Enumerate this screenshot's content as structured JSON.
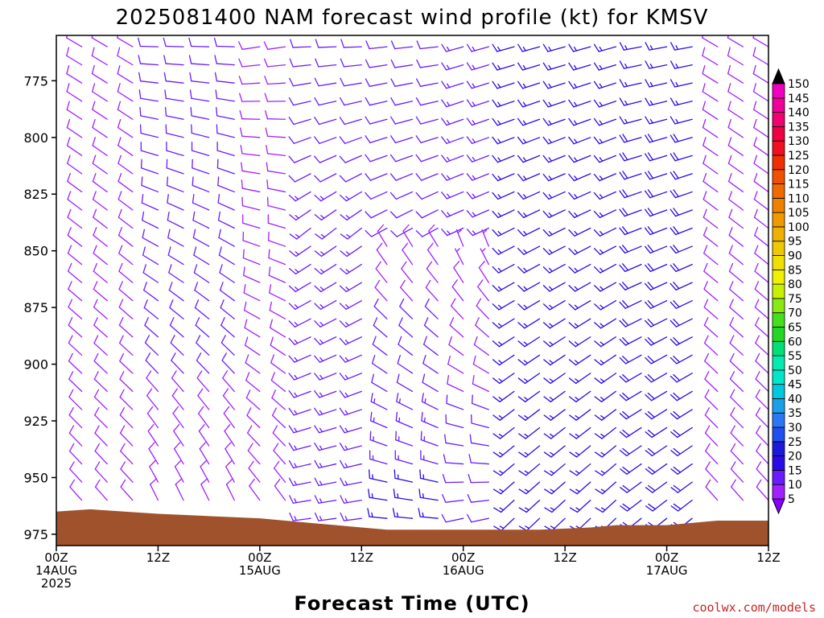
{
  "chart_data": {
    "type": "wind-barb-profile",
    "title": "2025081400 NAM forecast wind profile (kt) for KMSV",
    "xlabel": "Forecast Time (UTC)",
    "ylabel": "",
    "units": "kt",
    "ylim": [
      980,
      755
    ],
    "yticks": [
      775,
      800,
      825,
      850,
      875,
      900,
      925,
      950,
      975
    ],
    "x_range_hours": [
      0,
      84
    ],
    "x_step_hours": 3,
    "xticks": [
      {
        "hour": 0,
        "line1": "00Z",
        "line2": "14AUG",
        "line3": "2025"
      },
      {
        "hour": 12,
        "line1": "12Z",
        "line2": "",
        "line3": ""
      },
      {
        "hour": 24,
        "line1": "00Z",
        "line2": "15AUG",
        "line3": ""
      },
      {
        "hour": 36,
        "line1": "12Z",
        "line2": "",
        "line3": ""
      },
      {
        "hour": 48,
        "line1": "00Z",
        "line2": "16AUG",
        "line3": ""
      },
      {
        "hour": 60,
        "line1": "12Z",
        "line2": "",
        "line3": ""
      },
      {
        "hour": 72,
        "line1": "00Z",
        "line2": "17AUG",
        "line3": ""
      },
      {
        "hour": 84,
        "line1": "12Z",
        "line2": "",
        "line3": ""
      }
    ],
    "levels_hpa": [
      760,
      768,
      776,
      784,
      792,
      800,
      808,
      816,
      824,
      832,
      840,
      848,
      856,
      864,
      872,
      880,
      888,
      896,
      904,
      912,
      920,
      928,
      936,
      944,
      952,
      960,
      968
    ],
    "terrain_pressure": [
      {
        "hour": 0,
        "p": 965
      },
      {
        "hour": 4,
        "p": 964
      },
      {
        "hour": 8,
        "p": 965
      },
      {
        "hour": 12,
        "p": 966
      },
      {
        "hour": 18,
        "p": 967
      },
      {
        "hour": 24,
        "p": 968
      },
      {
        "hour": 27,
        "p": 969
      },
      {
        "hour": 30,
        "p": 970
      },
      {
        "hour": 33,
        "p": 971
      },
      {
        "hour": 36,
        "p": 972
      },
      {
        "hour": 39,
        "p": 973
      },
      {
        "hour": 48,
        "p": 973
      },
      {
        "hour": 57,
        "p": 973
      },
      {
        "hour": 63,
        "p": 972
      },
      {
        "hour": 66,
        "p": 971
      },
      {
        "hour": 72,
        "p": 971
      },
      {
        "hour": 78,
        "p": 969
      },
      {
        "hour": 84,
        "p": 969
      }
    ],
    "wind_regimes": [
      {
        "hours": [
          0,
          9
        ],
        "p_top": 755,
        "p_bot": 980,
        "dir_top": 300,
        "dir_bot": 320,
        "spd_top": 10,
        "spd_bot": 8
      },
      {
        "hours": [
          12,
          21
        ],
        "p_top": 755,
        "p_bot": 980,
        "dir_top": 270,
        "dir_bot": 340,
        "spd_top": 12,
        "spd_bot": 9
      },
      {
        "hours": [
          24,
          27
        ],
        "p_top": 755,
        "p_bot": 980,
        "dir_top": 260,
        "dir_bot": 330,
        "spd_top": 10,
        "spd_bot": 9
      },
      {
        "hours": [
          30,
          36
        ],
        "p_top": 755,
        "p_bot": 845,
        "dir_top": 270,
        "dir_bot": 230,
        "spd_top": 11,
        "spd_bot": 13
      },
      {
        "hours": [
          30,
          36
        ],
        "p_top": 845,
        "p_bot": 980,
        "dir_top": 235,
        "dir_bot": 265,
        "spd_top": 13,
        "spd_bot": 15
      },
      {
        "hours": [
          39,
          45
        ],
        "p_top": 755,
        "p_bot": 845,
        "dir_top": 265,
        "dir_bot": 240,
        "spd_top": 12,
        "spd_bot": 12
      },
      {
        "hours": [
          39,
          45
        ],
        "p_top": 845,
        "p_bot": 980,
        "dir_top": 330,
        "dir_bot": 270,
        "spd_top": 8,
        "spd_bot": 17
      },
      {
        "hours": [
          48,
          51
        ],
        "p_top": 755,
        "p_bot": 845,
        "dir_top": 255,
        "dir_bot": 245,
        "spd_top": 15,
        "spd_bot": 13
      },
      {
        "hours": [
          48,
          51
        ],
        "p_top": 845,
        "p_bot": 980,
        "dir_top": 340,
        "dir_bot": 250,
        "spd_top": 7,
        "spd_bot": 13
      },
      {
        "hours": [
          54,
          66
        ],
        "p_top": 755,
        "p_bot": 980,
        "dir_top": 255,
        "dir_bot": 225,
        "spd_top": 16,
        "spd_bot": 15
      },
      {
        "hours": [
          69,
          75
        ],
        "p_top": 755,
        "p_bot": 980,
        "dir_top": 260,
        "dir_bot": 230,
        "spd_top": 17,
        "spd_bot": 20
      },
      {
        "hours": [
          78,
          84
        ],
        "p_top": 755,
        "p_bot": 980,
        "dir_top": 300,
        "dir_bot": 320,
        "spd_top": 10,
        "spd_bot": 8
      }
    ],
    "colorbar": {
      "levels": [
        5,
        10,
        15,
        20,
        25,
        30,
        35,
        40,
        45,
        50,
        55,
        60,
        65,
        70,
        75,
        80,
        85,
        90,
        95,
        100,
        105,
        110,
        115,
        120,
        125,
        130,
        135,
        140,
        145,
        150
      ],
      "colors": [
        "#a020ff",
        "#6a1bff",
        "#2a0be8",
        "#1a1ad8",
        "#1f4ff0",
        "#2a78f5",
        "#1aa0e8",
        "#00c8e0",
        "#00e6c8",
        "#00ecb0",
        "#00e078",
        "#22d822",
        "#44e01c",
        "#88ea10",
        "#c8f000",
        "#f0f000",
        "#f0e000",
        "#f0c800",
        "#f0b000",
        "#f09a00",
        "#f08000",
        "#f06a00",
        "#f05000",
        "#f03000",
        "#f01020",
        "#f00040",
        "#f00070",
        "#f0009a",
        "#f000c0",
        "#f000e8"
      ],
      "top_color": "#000000",
      "bottom_color": "#8800ff"
    },
    "colors": {
      "terrain": "#a0522d",
      "barb_default": "#6a1bff"
    }
  },
  "credit": "coolwx.com/models"
}
